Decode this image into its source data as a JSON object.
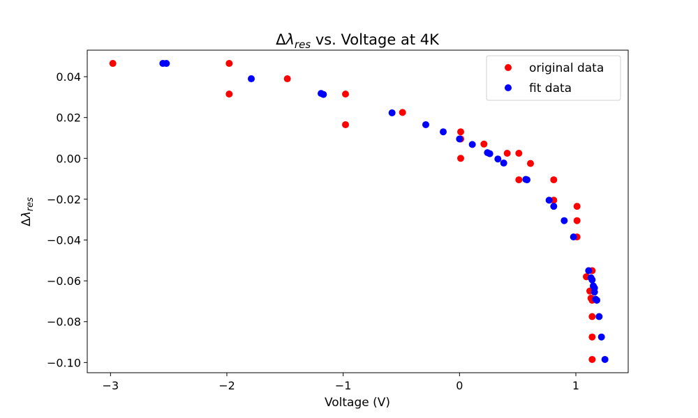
{
  "chart_data": {
    "type": "scatter",
    "title": {
      "prefix": "Δ",
      "symbol": "λ",
      "subscript": "res",
      "suffix": " vs. Voltage at 4K"
    },
    "xlabel": "Voltage (V)",
    "ylabel": {
      "prefix": "Δ",
      "symbol": "λ",
      "subscript": "res"
    },
    "xlim": [
      -3.2,
      1.45
    ],
    "ylim": [
      -0.105,
      0.053
    ],
    "x_ticks": [
      {
        "value": -3,
        "label": "−3"
      },
      {
        "value": -2,
        "label": "−2"
      },
      {
        "value": -1,
        "label": "−1"
      },
      {
        "value": 0,
        "label": "0"
      },
      {
        "value": 1,
        "label": "1"
      }
    ],
    "y_ticks": [
      {
        "value": 0.04,
        "label": "0.04"
      },
      {
        "value": 0.02,
        "label": "0.02"
      },
      {
        "value": 0.0,
        "label": "0.00"
      },
      {
        "value": -0.02,
        "label": "−0.02"
      },
      {
        "value": -0.04,
        "label": "−0.04"
      },
      {
        "value": -0.06,
        "label": "−0.06"
      },
      {
        "value": -0.08,
        "label": "−0.08"
      },
      {
        "value": -0.1,
        "label": "−0.10"
      }
    ],
    "grid": false,
    "legend_position": "top-right",
    "series": [
      {
        "name": "original data",
        "color": "#ff0000",
        "points": [
          [
            -2.98,
            0.0465
          ],
          [
            -1.98,
            0.0465
          ],
          [
            -1.98,
            0.0315
          ],
          [
            -1.48,
            0.039
          ],
          [
            -0.98,
            0.0315
          ],
          [
            -0.98,
            0.0165
          ],
          [
            -0.49,
            0.0225
          ],
          [
            0.01,
            0.013
          ],
          [
            0.01,
            0.0095
          ],
          [
            0.01,
            0.0
          ],
          [
            0.21,
            0.007
          ],
          [
            0.41,
            0.0025
          ],
          [
            0.51,
            0.0025
          ],
          [
            0.51,
            -0.0105
          ],
          [
            0.61,
            -0.0025
          ],
          [
            0.81,
            -0.0105
          ],
          [
            0.81,
            -0.0205
          ],
          [
            1.01,
            -0.0235
          ],
          [
            1.01,
            -0.0305
          ],
          [
            1.01,
            -0.0385
          ],
          [
            1.09,
            -0.058
          ],
          [
            1.12,
            -0.065
          ],
          [
            1.13,
            -0.0685
          ],
          [
            1.14,
            -0.055
          ],
          [
            1.14,
            -0.0695
          ],
          [
            1.14,
            -0.0775
          ],
          [
            1.14,
            -0.0875
          ],
          [
            1.14,
            -0.0985
          ]
        ]
      },
      {
        "name": "fit data",
        "color": "#0000ff",
        "points": [
          [
            -2.55,
            0.0465
          ],
          [
            -2.52,
            0.0465
          ],
          [
            -1.79,
            0.039
          ],
          [
            -1.19,
            0.0318
          ],
          [
            -1.17,
            0.0313
          ],
          [
            -0.58,
            0.0223
          ],
          [
            -0.29,
            0.0165
          ],
          [
            -0.14,
            0.013
          ],
          [
            0.0,
            0.0095
          ],
          [
            0.11,
            0.0068
          ],
          [
            0.24,
            0.0028
          ],
          [
            0.26,
            0.0023
          ],
          [
            0.33,
            -0.0003
          ],
          [
            0.38,
            -0.0023
          ],
          [
            0.57,
            -0.0103
          ],
          [
            0.58,
            -0.0105
          ],
          [
            0.77,
            -0.0205
          ],
          [
            0.81,
            -0.0235
          ],
          [
            0.9,
            -0.0305
          ],
          [
            0.98,
            -0.0385
          ],
          [
            1.11,
            -0.055
          ],
          [
            1.13,
            -0.0585
          ],
          [
            1.14,
            -0.0595
          ],
          [
            1.15,
            -0.0625
          ],
          [
            1.16,
            -0.0635
          ],
          [
            1.16,
            -0.0655
          ],
          [
            1.17,
            -0.069
          ],
          [
            1.18,
            -0.0695
          ],
          [
            1.2,
            -0.0775
          ],
          [
            1.22,
            -0.0875
          ],
          [
            1.25,
            -0.0985
          ]
        ]
      }
    ]
  }
}
